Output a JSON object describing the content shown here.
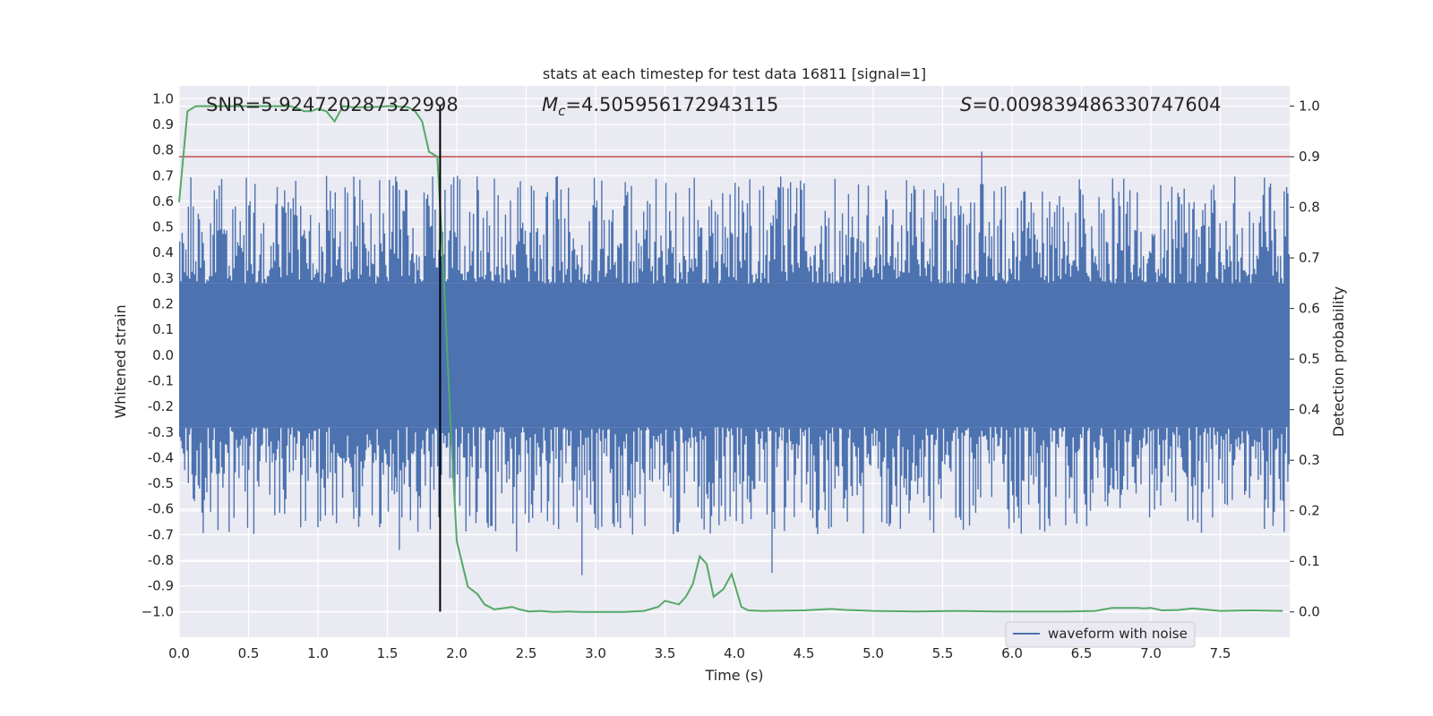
{
  "chart_data": {
    "type": "line",
    "title": "stats at each timestep for test data 16811 [signal=1]",
    "xlabel": "Time (s)",
    "ylabel": "Whitened strain",
    "y2label": "Detection probability",
    "xlim": [
      0.0,
      8.0
    ],
    "ylim": [
      -1.1,
      1.05
    ],
    "y2lim": [
      -0.05,
      1.04
    ],
    "xticks": [
      "0.0",
      "0.5",
      "1.0",
      "1.5",
      "2.0",
      "2.5",
      "3.0",
      "3.5",
      "4.0",
      "4.5",
      "5.0",
      "5.5",
      "6.0",
      "6.5",
      "7.0",
      "7.5"
    ],
    "xtick_values": [
      0.0,
      0.5,
      1.0,
      1.5,
      2.0,
      2.5,
      3.0,
      3.5,
      4.0,
      4.5,
      5.0,
      5.5,
      6.0,
      6.5,
      7.0,
      7.5
    ],
    "yticks": [
      "1.0",
      "0.9",
      "0.8",
      "0.7",
      "0.6",
      "0.5",
      "0.4",
      "0.3",
      "0.2",
      "0.1",
      "0.0",
      "-0.1",
      "-0.2",
      "-0.3",
      "-0.4",
      "-0.5",
      "-0.6",
      "-0.7",
      "-0.8",
      "-0.9",
      "−1.0"
    ],
    "ytick_values": [
      1.0,
      0.9,
      0.8,
      0.7,
      0.6,
      0.5,
      0.4,
      0.3,
      0.2,
      0.1,
      0.0,
      -0.1,
      -0.2,
      -0.3,
      -0.4,
      -0.5,
      -0.6,
      -0.7,
      -0.8,
      -0.9,
      -1.0
    ],
    "y2ticks": [
      "1.0",
      "0.9",
      "0.8",
      "0.7",
      "0.6",
      "0.5",
      "0.4",
      "0.3",
      "0.2",
      "0.1",
      "0.0"
    ],
    "y2tick_values": [
      1.0,
      0.9,
      0.8,
      0.7,
      0.6,
      0.5,
      0.4,
      0.3,
      0.2,
      0.1,
      0.0
    ],
    "annotations": {
      "snr": "SNR=5.924720287322998",
      "mc_symbol": "M",
      "mc_sub": "c",
      "mc_value": "=4.505956172943115",
      "s_symbol": "S",
      "s_value": "=0.009839486330747604"
    },
    "threshold": 0.9,
    "event_time": 1.88,
    "legend": {
      "label": "waveform with noise",
      "position": "lower-right"
    },
    "waveform": {
      "name": "waveform with noise",
      "color": "#4c72b0",
      "samples": 900,
      "core_amplitude": 0.28,
      "envelope_peak": 0.95,
      "duration": 8.0
    },
    "series": [
      {
        "name": "Detection probability",
        "color": "#55a868",
        "x": [
          0.0,
          0.06,
          0.12,
          0.2,
          0.3,
          0.4,
          0.5,
          0.6,
          0.7,
          0.8,
          0.86,
          0.9,
          0.95,
          1.0,
          1.06,
          1.12,
          1.18,
          1.25,
          1.35,
          1.45,
          1.5,
          1.55,
          1.6,
          1.65,
          1.7,
          1.75,
          1.8,
          1.86,
          1.9,
          1.95,
          2.0,
          2.08,
          2.15,
          2.2,
          2.27,
          2.35,
          2.4,
          2.45,
          2.52,
          2.6,
          2.7,
          2.8,
          2.9,
          3.0,
          3.2,
          3.35,
          3.45,
          3.5,
          3.6,
          3.65,
          3.7,
          3.75,
          3.8,
          3.85,
          3.92,
          3.98,
          4.05,
          4.1,
          4.2,
          4.5,
          4.7,
          4.8,
          4.9,
          5.0,
          5.3,
          5.6,
          5.9,
          6.2,
          6.4,
          6.6,
          6.72,
          6.9,
          6.95,
          7.0,
          7.08,
          7.2,
          7.3,
          7.5,
          7.7,
          7.95
        ],
        "y": [
          0.81,
          0.99,
          1.0,
          1.0,
          1.0,
          1.0,
          1.0,
          1.0,
          1.0,
          1.0,
          0.995,
          0.99,
          0.99,
          0.995,
          0.99,
          0.97,
          1.0,
          0.998,
          0.998,
          0.999,
          1.0,
          1.0,
          0.999,
          0.998,
          0.99,
          0.97,
          0.91,
          0.9,
          0.7,
          0.4,
          0.14,
          0.05,
          0.035,
          0.015,
          0.005,
          0.008,
          0.01,
          0.005,
          0.001,
          0.002,
          0.0,
          0.001,
          0.0,
          0.0,
          0.0,
          0.002,
          0.01,
          0.022,
          0.015,
          0.03,
          0.055,
          0.11,
          0.095,
          0.03,
          0.045,
          0.075,
          0.01,
          0.003,
          0.002,
          0.003,
          0.006,
          0.004,
          0.003,
          0.002,
          0.001,
          0.002,
          0.001,
          0.001,
          0.001,
          0.002,
          0.008,
          0.008,
          0.007,
          0.008,
          0.003,
          0.004,
          0.007,
          0.002,
          0.003,
          0.002
        ]
      }
    ]
  }
}
